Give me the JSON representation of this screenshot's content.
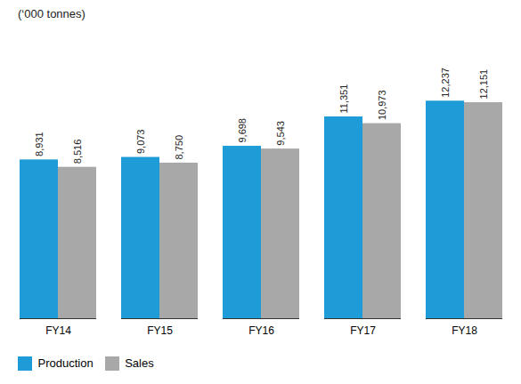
{
  "chart_data": {
    "type": "bar",
    "ylabel": "(‘000 tonnes)",
    "categories": [
      "FY14",
      "FY15",
      "FY16",
      "FY17",
      "FY18"
    ],
    "series": [
      {
        "name": "Production",
        "color": "#1e9cd7",
        "values": [
          8931,
          9073,
          9698,
          11351,
          12237
        ],
        "value_labels": [
          "8,931",
          "9,073",
          "9,698",
          "11,351",
          "12,237"
        ]
      },
      {
        "name": "Sales",
        "color": "#a8a8a8",
        "values": [
          8516,
          8750,
          9543,
          10973,
          12151
        ],
        "value_labels": [
          "8,516",
          "8,750",
          "9,543",
          "10,973",
          "12,151"
        ]
      }
    ],
    "ylim": [
      0,
      15000
    ],
    "grid": false,
    "legend": "bottom",
    "data_labels": true,
    "tick_labels": "x"
  }
}
